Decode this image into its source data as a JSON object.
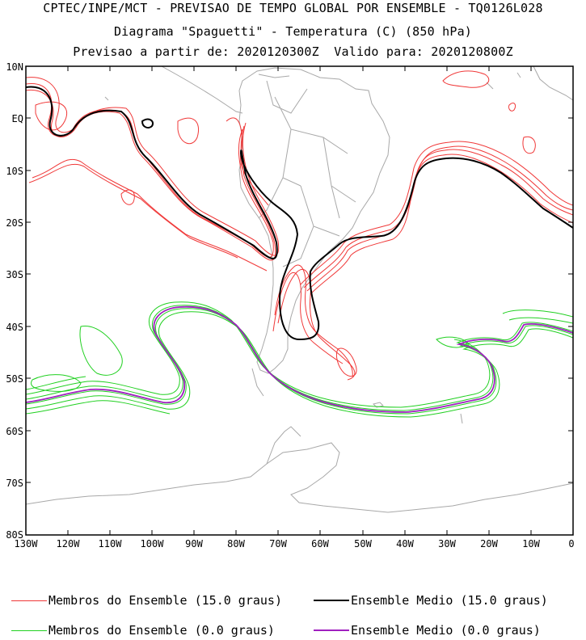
{
  "header": {
    "line1": "CPTEC/INPE/MCT - PREVISAO DE TEMPO GLOBAL POR ENSEMBLE - TQ0126L028",
    "line2": "Diagrama \"Spaguetti\" - Temperatura (C) (850 hPa)",
    "line3": "Previsao a partir de: 2020120300Z  Valido para: 2020120800Z"
  },
  "axes": {
    "lat_labels": [
      "10N",
      "EQ",
      "10S",
      "20S",
      "30S",
      "40S",
      "50S",
      "60S",
      "70S",
      "80S"
    ],
    "lon_labels": [
      "130W",
      "120W",
      "110W",
      "100W",
      "90W",
      "80W",
      "70W",
      "60W",
      "50W",
      "40W",
      "30W",
      "20W",
      "10W",
      "0"
    ]
  },
  "legend": {
    "members_15": "Membros do Ensemble (15.0 graus)",
    "mean_15": "Ensemble Medio (15.0 graus)",
    "members_0": "Membros do Ensemble (0.0 graus)",
    "mean_0": "Ensemble Medio (0.0 graus)"
  },
  "colors": {
    "members_15": "#f03838",
    "mean_15": "#000000",
    "members_0": "#20d020",
    "mean_0": "#a020c0",
    "coast": "#a8a8a8"
  }
}
